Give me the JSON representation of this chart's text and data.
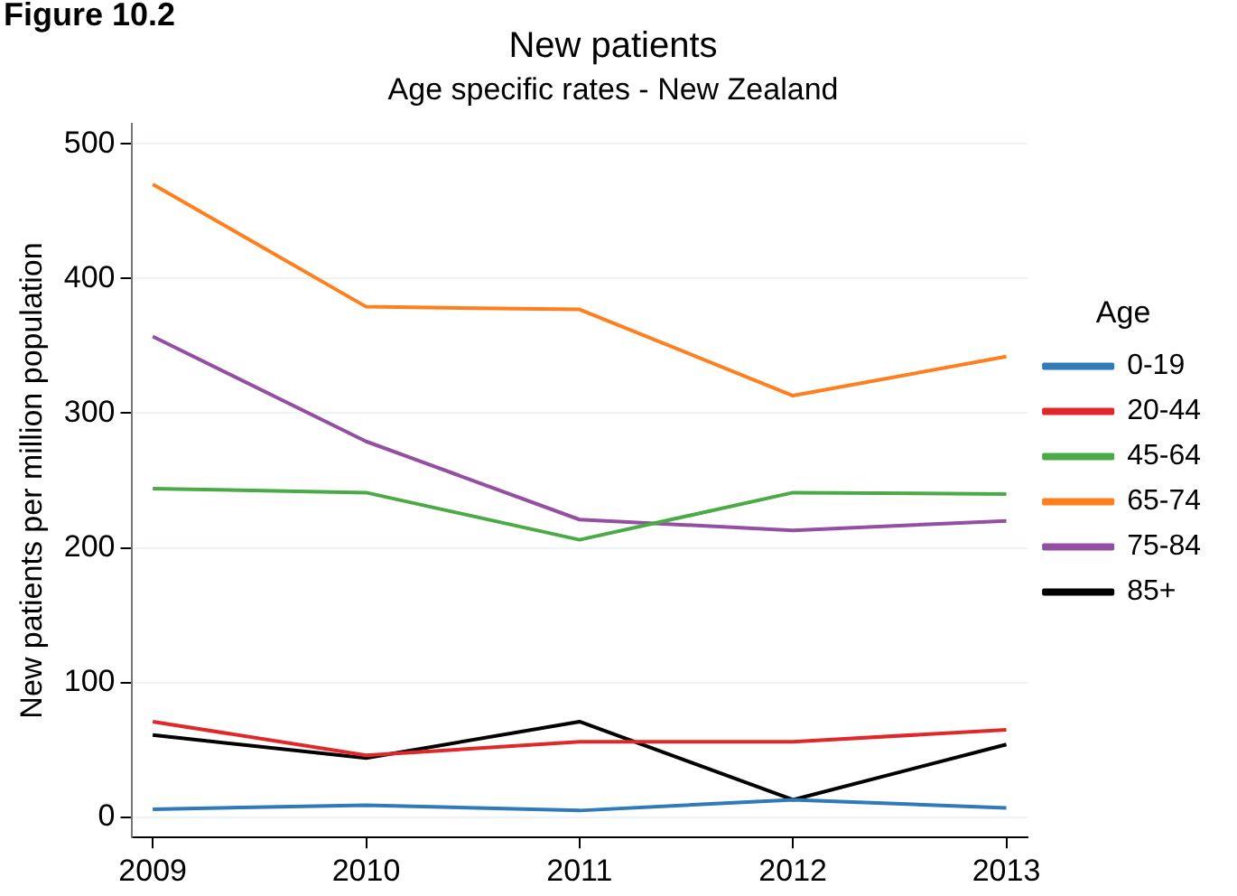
{
  "chart_data": {
    "type": "line",
    "title": "New patients",
    "subtitle": "Age specific rates - New Zealand",
    "ylabel": "New patients per million population",
    "legend_title": "Age",
    "annotations": [
      "Figure 10.2"
    ],
    "x": [
      2009,
      2010,
      2011,
      2012,
      2013
    ],
    "series": [
      {
        "name": "0-19",
        "color": "#2f7ab9",
        "values": [
          6,
          9,
          5,
          13,
          7
        ]
      },
      {
        "name": "20-44",
        "color": "#e0282a",
        "values": [
          71,
          46,
          56,
          56,
          65
        ]
      },
      {
        "name": "45-64",
        "color": "#4aab46",
        "values": [
          244,
          241,
          206,
          241,
          240
        ]
      },
      {
        "name": "65-74",
        "color": "#ff7f1e",
        "values": [
          470,
          379,
          377,
          313,
          342
        ]
      },
      {
        "name": "75-84",
        "color": "#944ea2",
        "values": [
          357,
          279,
          221,
          213,
          220
        ]
      },
      {
        "name": "85+",
        "color": "#000000",
        "values": [
          61,
          44,
          71,
          13,
          54
        ]
      }
    ],
    "xlim": [
      2008.9,
      2013.1
    ],
    "xticks": [
      2009,
      2010,
      2011,
      2012,
      2013
    ],
    "ylim": [
      -15,
      515
    ],
    "yticks": [
      0,
      100,
      200,
      300,
      400,
      500
    ],
    "grid": "y",
    "legend": "right",
    "marker": "none",
    "line_style": "solid"
  }
}
